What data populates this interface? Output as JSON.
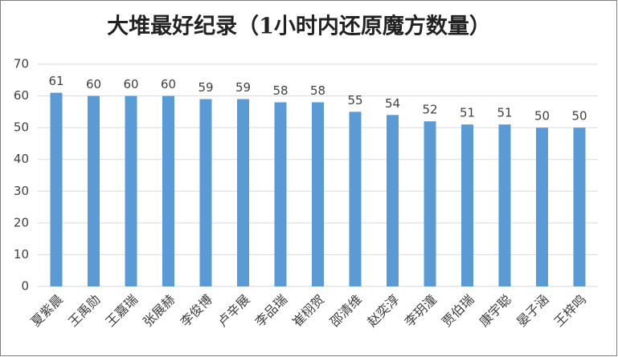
{
  "chart_data": {
    "type": "bar",
    "title": "大堆最好纪录（1小时内还原魔方数量）",
    "categories": [
      "夏紫晨",
      "王禹勋",
      "王嘉瑞",
      "张展赫",
      "李俊博",
      "卢辛展",
      "李品瑞",
      "崔栩贺",
      "邵清维",
      "赵奕淳",
      "李玥潼",
      "贾伯瑞",
      "康宇聪",
      "晏子涵",
      "王梓鸣"
    ],
    "values": [
      61,
      60,
      60,
      60,
      59,
      59,
      58,
      58,
      55,
      54,
      52,
      51,
      51,
      50,
      50
    ],
    "color": "#5b9bd5",
    "ylim": [
      0,
      70
    ],
    "yticks": [
      0,
      10,
      20,
      30,
      40,
      50,
      60,
      70
    ],
    "grid": true
  }
}
